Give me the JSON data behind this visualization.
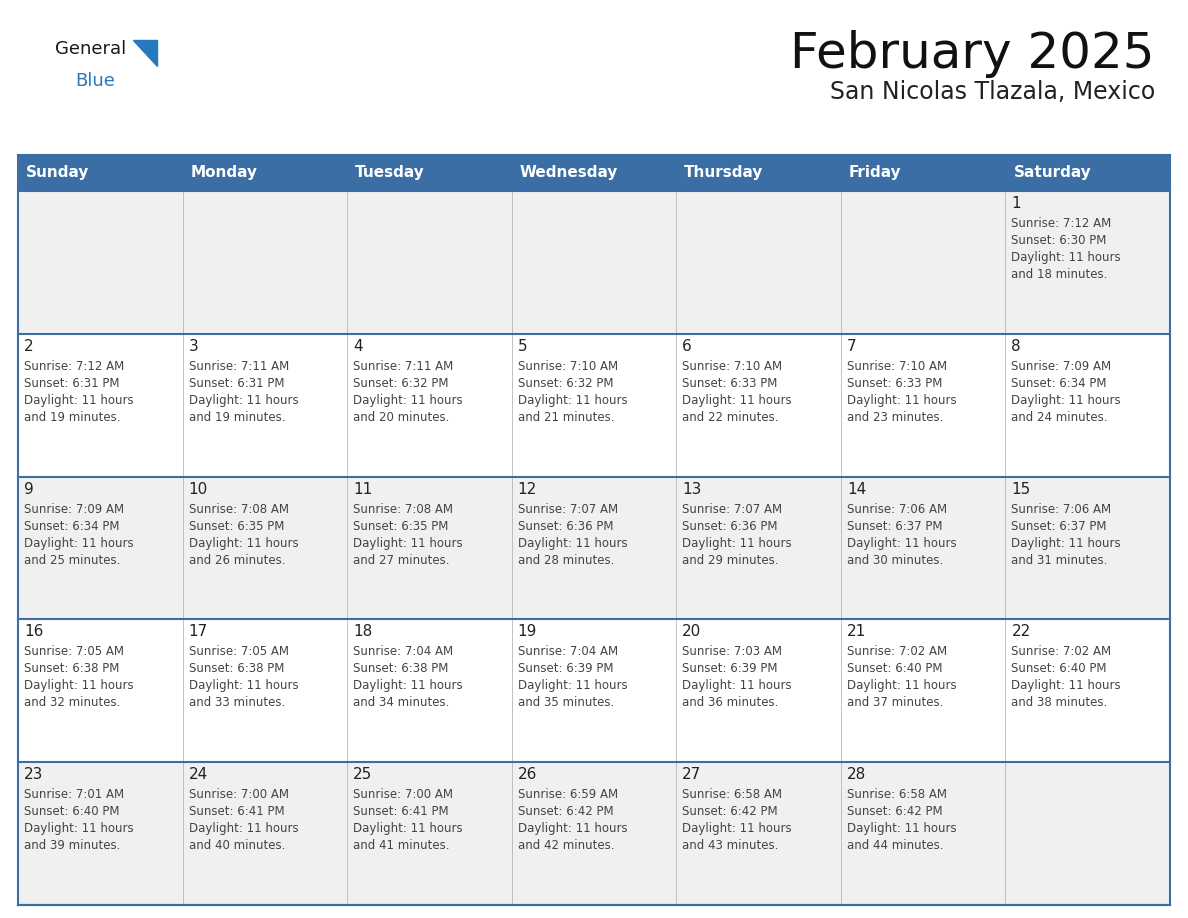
{
  "title": "February 2025",
  "subtitle": "San Nicolas Tlazala, Mexico",
  "days_of_week": [
    "Sunday",
    "Monday",
    "Tuesday",
    "Wednesday",
    "Thursday",
    "Friday",
    "Saturday"
  ],
  "header_bg": "#3a6ea5",
  "header_fg": "#ffffff",
  "row_bg": [
    "#f0f0f0",
    "#ffffff",
    "#f0f0f0",
    "#ffffff",
    "#f0f0f0"
  ],
  "border_color": "#3a6ea5",
  "day_number_color": "#222222",
  "text_color": "#444444",
  "logo_general_color": "#1a1a1a",
  "logo_blue_color": "#2678bf",
  "calendar_data": [
    [
      null,
      null,
      null,
      null,
      null,
      null,
      {
        "day": 1,
        "sunrise": "7:12 AM",
        "sunset": "6:30 PM",
        "daylight": "11 hours and 18 minutes."
      }
    ],
    [
      {
        "day": 2,
        "sunrise": "7:12 AM",
        "sunset": "6:31 PM",
        "daylight": "11 hours and 19 minutes."
      },
      {
        "day": 3,
        "sunrise": "7:11 AM",
        "sunset": "6:31 PM",
        "daylight": "11 hours and 19 minutes."
      },
      {
        "day": 4,
        "sunrise": "7:11 AM",
        "sunset": "6:32 PM",
        "daylight": "11 hours and 20 minutes."
      },
      {
        "day": 5,
        "sunrise": "7:10 AM",
        "sunset": "6:32 PM",
        "daylight": "11 hours and 21 minutes."
      },
      {
        "day": 6,
        "sunrise": "7:10 AM",
        "sunset": "6:33 PM",
        "daylight": "11 hours and 22 minutes."
      },
      {
        "day": 7,
        "sunrise": "7:10 AM",
        "sunset": "6:33 PM",
        "daylight": "11 hours and 23 minutes."
      },
      {
        "day": 8,
        "sunrise": "7:09 AM",
        "sunset": "6:34 PM",
        "daylight": "11 hours and 24 minutes."
      }
    ],
    [
      {
        "day": 9,
        "sunrise": "7:09 AM",
        "sunset": "6:34 PM",
        "daylight": "11 hours and 25 minutes."
      },
      {
        "day": 10,
        "sunrise": "7:08 AM",
        "sunset": "6:35 PM",
        "daylight": "11 hours and 26 minutes."
      },
      {
        "day": 11,
        "sunrise": "7:08 AM",
        "sunset": "6:35 PM",
        "daylight": "11 hours and 27 minutes."
      },
      {
        "day": 12,
        "sunrise": "7:07 AM",
        "sunset": "6:36 PM",
        "daylight": "11 hours and 28 minutes."
      },
      {
        "day": 13,
        "sunrise": "7:07 AM",
        "sunset": "6:36 PM",
        "daylight": "11 hours and 29 minutes."
      },
      {
        "day": 14,
        "sunrise": "7:06 AM",
        "sunset": "6:37 PM",
        "daylight": "11 hours and 30 minutes."
      },
      {
        "day": 15,
        "sunrise": "7:06 AM",
        "sunset": "6:37 PM",
        "daylight": "11 hours and 31 minutes."
      }
    ],
    [
      {
        "day": 16,
        "sunrise": "7:05 AM",
        "sunset": "6:38 PM",
        "daylight": "11 hours and 32 minutes."
      },
      {
        "day": 17,
        "sunrise": "7:05 AM",
        "sunset": "6:38 PM",
        "daylight": "11 hours and 33 minutes."
      },
      {
        "day": 18,
        "sunrise": "7:04 AM",
        "sunset": "6:38 PM",
        "daylight": "11 hours and 34 minutes."
      },
      {
        "day": 19,
        "sunrise": "7:04 AM",
        "sunset": "6:39 PM",
        "daylight": "11 hours and 35 minutes."
      },
      {
        "day": 20,
        "sunrise": "7:03 AM",
        "sunset": "6:39 PM",
        "daylight": "11 hours and 36 minutes."
      },
      {
        "day": 21,
        "sunrise": "7:02 AM",
        "sunset": "6:40 PM",
        "daylight": "11 hours and 37 minutes."
      },
      {
        "day": 22,
        "sunrise": "7:02 AM",
        "sunset": "6:40 PM",
        "daylight": "11 hours and 38 minutes."
      }
    ],
    [
      {
        "day": 23,
        "sunrise": "7:01 AM",
        "sunset": "6:40 PM",
        "daylight": "11 hours and 39 minutes."
      },
      {
        "day": 24,
        "sunrise": "7:00 AM",
        "sunset": "6:41 PM",
        "daylight": "11 hours and 40 minutes."
      },
      {
        "day": 25,
        "sunrise": "7:00 AM",
        "sunset": "6:41 PM",
        "daylight": "11 hours and 41 minutes."
      },
      {
        "day": 26,
        "sunrise": "6:59 AM",
        "sunset": "6:42 PM",
        "daylight": "11 hours and 42 minutes."
      },
      {
        "day": 27,
        "sunrise": "6:58 AM",
        "sunset": "6:42 PM",
        "daylight": "11 hours and 43 minutes."
      },
      {
        "day": 28,
        "sunrise": "6:58 AM",
        "sunset": "6:42 PM",
        "daylight": "11 hours and 44 minutes."
      },
      null
    ]
  ]
}
